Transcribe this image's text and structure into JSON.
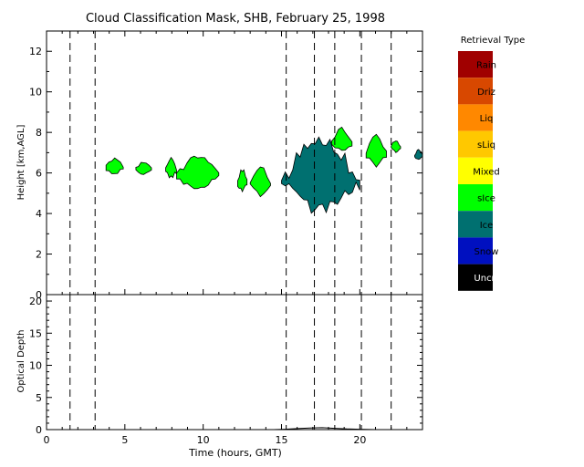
{
  "chart_data": [
    {
      "type": "heatmap",
      "panel": "classification-mask",
      "title": "Cloud Classification Mask, SHB, February 25, 1998",
      "ylabel": "Height [km,AGL]",
      "xlim": [
        0,
        24
      ],
      "ylim": [
        0,
        13
      ],
      "yticks": [
        "0",
        "2",
        "4",
        "6",
        "8",
        "10",
        "12"
      ],
      "vertical_dashed_lines_hours": [
        1.5,
        3.1,
        15.3,
        17.1,
        18.4,
        20.1,
        22.0
      ],
      "legend": {
        "title": "Retrieval Type",
        "placement": "right",
        "entries": [
          {
            "label": "Rain",
            "color": "#a00000"
          },
          {
            "label": "Driz",
            "color": "#d84800"
          },
          {
            "label": "Liq",
            "color": "#ff8800"
          },
          {
            "label": "sLiq",
            "color": "#ffc800"
          },
          {
            "label": "Mixed",
            "color": "#ffff00"
          },
          {
            "label": "sIce",
            "color": "#00ff00"
          },
          {
            "label": "Ice",
            "color": "#007070"
          },
          {
            "label": "Snow",
            "color": "#0010c0"
          },
          {
            "label": "Uncrt",
            "color": "#000000"
          }
        ]
      },
      "regions": [
        {
          "class": "sIce",
          "start": 3.8,
          "end": 4.9,
          "bottom": 5.9,
          "top": 6.8
        },
        {
          "class": "sIce",
          "start": 5.7,
          "end": 6.7,
          "bottom": 5.9,
          "top": 6.6
        },
        {
          "class": "sIce",
          "start": 7.6,
          "end": 8.3,
          "bottom": 5.7,
          "top": 6.8
        },
        {
          "class": "sIce",
          "start": 8.3,
          "end": 11.0,
          "bottom": 5.1,
          "top": 7.0
        },
        {
          "class": "sIce",
          "start": 12.2,
          "end": 12.8,
          "bottom": 5.0,
          "top": 6.3
        },
        {
          "class": "sIce",
          "start": 13.0,
          "end": 14.3,
          "bottom": 4.8,
          "top": 6.4
        },
        {
          "class": "Ice",
          "start": 15.0,
          "end": 20.0,
          "bottom": 3.9,
          "top": 8.0
        },
        {
          "class": "sIce",
          "start": 18.2,
          "end": 19.5,
          "bottom": 7.0,
          "top": 8.3
        },
        {
          "class": "sIce",
          "start": 20.4,
          "end": 21.7,
          "bottom": 6.2,
          "top": 8.1
        },
        {
          "class": "sIce",
          "start": 22.0,
          "end": 22.6,
          "bottom": 7.0,
          "top": 7.7
        },
        {
          "class": "Ice",
          "start": 23.5,
          "end": 24.0,
          "bottom": 6.6,
          "top": 7.2
        }
      ]
    },
    {
      "type": "line",
      "panel": "optical-depth",
      "xlabel": "Time (hours, GMT)",
      "ylabel": "Optical Depth",
      "xlim": [
        0,
        24
      ],
      "ylim": [
        0,
        21
      ],
      "xticks": [
        "0",
        "5",
        "10",
        "15",
        "20"
      ],
      "yticks": [
        "0",
        "5",
        "10",
        "15",
        "20"
      ],
      "vertical_dashed_lines_hours": [
        1.5,
        3.1,
        15.3,
        17.1,
        18.4,
        20.1,
        22.0
      ],
      "series": [
        {
          "x": [
            14.5,
            15.2,
            16.0,
            16.8,
            17.6,
            18.4,
            19.2,
            20.0,
            21.0
          ],
          "y": [
            0,
            0.05,
            0.15,
            0.25,
            0.3,
            0.2,
            0.1,
            0.05,
            0
          ]
        }
      ]
    }
  ]
}
